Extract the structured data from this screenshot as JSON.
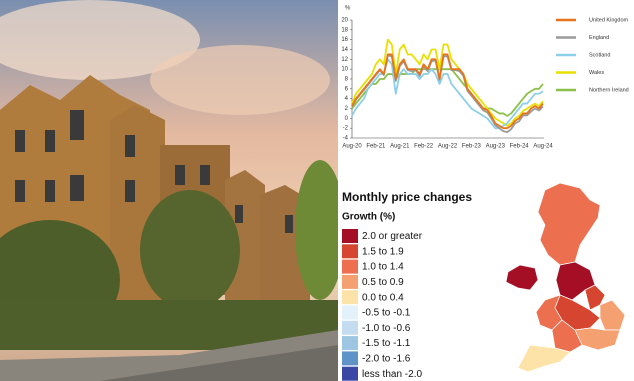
{
  "chart_data": {
    "type": "line",
    "y_label": "%",
    "categories": [
      "Aug-20",
      null,
      null,
      null,
      null,
      null,
      "Feb-21",
      null,
      null,
      null,
      null,
      null,
      "Aug-21",
      null,
      null,
      null,
      null,
      null,
      "Feb-22",
      null,
      null,
      null,
      null,
      null,
      "Aug-22",
      null,
      null,
      null,
      null,
      null,
      "Feb-23",
      null,
      null,
      null,
      null,
      null,
      "Aug-23",
      null,
      null,
      null,
      null,
      null,
      "Feb-24",
      null,
      null,
      null,
      null,
      null,
      "Aug-24"
    ],
    "ylim": [
      -4,
      20
    ],
    "yticks": [
      -4,
      -2,
      0,
      2,
      4,
      6,
      8,
      10,
      12,
      14,
      16,
      18,
      20
    ],
    "grid": false,
    "legend": "right",
    "series": [
      {
        "name": "United Kingdom",
        "color": "#e8731a",
        "values": [
          2.5,
          4,
          5,
          6,
          7,
          8,
          9,
          10,
          9,
          13,
          13,
          8,
          11,
          12,
          10,
          10,
          10,
          9,
          11,
          10,
          12,
          12,
          8,
          13,
          13,
          10,
          10,
          10,
          9,
          6,
          5,
          4,
          3,
          2,
          1.7,
          0.5,
          -1,
          -1.5,
          -2,
          -2,
          -1.5,
          -0.5,
          0,
          1,
          1,
          2,
          2.5,
          2,
          3
        ]
      },
      {
        "name": "England",
        "color": "#9a9a9a",
        "values": [
          2.3,
          3.8,
          4.8,
          5.8,
          6.8,
          7.8,
          8.8,
          9.8,
          8.8,
          12.8,
          12.6,
          7.6,
          10.6,
          11.6,
          9.8,
          9.6,
          9.8,
          8.6,
          10.6,
          9.6,
          11.6,
          11.8,
          7.8,
          12.6,
          12.6,
          9.8,
          9.8,
          9.6,
          8.6,
          5.6,
          4.6,
          3.6,
          2.6,
          1.6,
          1.2,
          0,
          -1.4,
          -2,
          -2.6,
          -2.8,
          -2.2,
          -1,
          -0.6,
          0.6,
          0.6,
          1.4,
          2,
          1.6,
          2.4
        ]
      },
      {
        "name": "Scotland",
        "color": "#8ccfe8",
        "values": [
          0.5,
          2,
          3,
          4,
          6,
          7,
          8,
          9,
          9,
          12,
          11,
          5,
          9,
          10,
          9,
          9,
          9,
          8,
          9,
          9,
          10,
          9,
          7,
          9,
          9,
          7,
          6,
          5,
          4,
          3,
          2,
          1.5,
          1,
          0.5,
          0,
          -1,
          -2,
          -2,
          -1.5,
          -1,
          0,
          1,
          2,
          3,
          3,
          4,
          5,
          5,
          5.5
        ]
      },
      {
        "name": "Wales",
        "color": "#e8e000",
        "values": [
          3,
          5,
          6,
          7,
          8,
          9,
          11,
          12,
          11,
          16,
          15,
          9,
          14,
          15,
          13,
          13,
          12,
          11,
          13,
          12,
          14,
          14,
          10,
          15,
          15,
          12,
          11,
          10,
          9,
          7,
          6,
          5,
          4,
          3,
          2,
          1,
          0,
          -0.5,
          -1,
          -1.5,
          -1,
          0,
          0.5,
          1.5,
          2,
          2.5,
          3,
          2.5,
          3.5
        ]
      },
      {
        "name": "Northern Ireland",
        "color": "#8cc04a",
        "values": [
          2,
          3,
          4,
          5,
          6,
          7,
          7,
          8,
          8,
          9,
          9,
          8,
          9,
          9,
          9,
          9,
          10,
          10,
          10,
          10,
          10,
          10,
          10,
          10,
          10,
          10,
          9,
          8,
          7,
          6,
          5,
          4,
          3,
          2,
          2,
          2,
          1.5,
          1,
          1,
          0.5,
          1,
          2,
          3,
          4,
          5,
          5.5,
          6,
          6,
          7
        ]
      }
    ]
  },
  "map": {
    "title": "Monthly price changes",
    "subtitle": "Growth (%)",
    "legend": [
      {
        "label": "2.0 or greater",
        "color": "#a50f26"
      },
      {
        "label": "1.5 to 1.9",
        "color": "#d6452f"
      },
      {
        "label": "1.0 to 1.4",
        "color": "#ec7050"
      },
      {
        "label": "0.5 to 0.9",
        "color": "#f5a070"
      },
      {
        "label": "0.0 to 0.4",
        "color": "#fde3a8"
      },
      {
        "label": "-0.5 to -0.1",
        "color": "#e3f1fb"
      },
      {
        "label": "-1.0 to -0.6",
        "color": "#c3dcef"
      },
      {
        "label": "-1.5 to -1.1",
        "color": "#9cc6e2"
      },
      {
        "label": "-2.0 to -1.6",
        "color": "#5f93c8"
      },
      {
        "label": "less than -2.0",
        "color": "#3a47a5"
      }
    ]
  }
}
